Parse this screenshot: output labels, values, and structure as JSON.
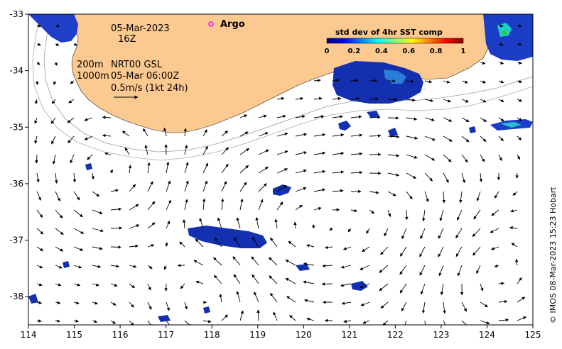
{
  "map": {
    "date": "05-Mar-2023",
    "hour": "16Z",
    "depth_label_1": "200m",
    "depth_label_2": "1000m",
    "product": "NRT00 GSL",
    "product_time": "05-Mar 06:00Z",
    "scale_label": "0.5m/s (1kt 24h)",
    "argo_label": "Argo",
    "argo_color": "#ff00ff",
    "land_color": "#fcc990",
    "credit": "© IMOS 08-Mar-2023 15:23 Hobart"
  },
  "colorbar": {
    "title": "std dev of 4hr SST comp",
    "ticks": [
      "0",
      "0.2",
      "0.4",
      "0.6",
      "0.8",
      "1"
    ],
    "stops": [
      "#00007f",
      "#0000ff",
      "#007fff",
      "#00ffff",
      "#7fff7f",
      "#ffff00",
      "#ff7f00",
      "#ff0000",
      "#7f0000"
    ]
  },
  "axes": {
    "x_ticks": [
      "114",
      "115",
      "116",
      "117",
      "118",
      "119",
      "120",
      "121",
      "122",
      "123",
      "124",
      "125"
    ],
    "y_ticks": [
      "-33",
      "-34",
      "-35",
      "-36",
      "-37",
      "-38"
    ],
    "xlim": [
      114,
      125
    ],
    "ylim": [
      -38.5,
      -33
    ]
  }
}
